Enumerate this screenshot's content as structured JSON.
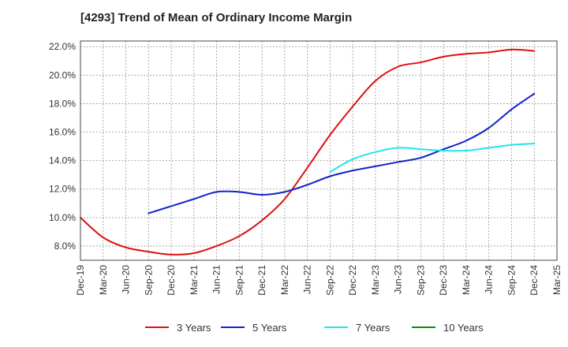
{
  "chart_data": {
    "type": "line",
    "title": "[4293]  Trend of Mean of Ordinary Income Margin",
    "xlabel": "",
    "ylabel": "",
    "x": [
      "Dec-19",
      "Mar-20",
      "Jun-20",
      "Sep-20",
      "Dec-20",
      "Mar-21",
      "Jun-21",
      "Sep-21",
      "Dec-21",
      "Mar-22",
      "Jun-22",
      "Sep-22",
      "Dec-22",
      "Mar-23",
      "Jun-23",
      "Sep-23",
      "Dec-23",
      "Mar-24",
      "Jun-24",
      "Sep-24",
      "Dec-24",
      "Mar-25"
    ],
    "ylim": [
      7.0,
      22.4
    ],
    "yticks": [
      8.0,
      10.0,
      12.0,
      14.0,
      16.0,
      18.0,
      20.0,
      22.0
    ],
    "ytick_labels": [
      "8.0%",
      "10.0%",
      "12.0%",
      "14.0%",
      "16.0%",
      "18.0%",
      "20.0%",
      "22.0%"
    ],
    "grid": true,
    "legend_position": "bottom",
    "series": [
      {
        "name": "3 Years",
        "color": "#dd1111",
        "values": [
          10.0,
          8.6,
          7.9,
          7.6,
          7.4,
          7.5,
          8.0,
          8.7,
          9.8,
          11.3,
          13.5,
          15.8,
          17.8,
          19.6,
          20.6,
          20.9,
          21.3,
          21.5,
          21.6,
          21.8,
          21.7,
          null
        ]
      },
      {
        "name": "5 Years",
        "color": "#1122cc",
        "values": [
          null,
          null,
          null,
          10.3,
          10.8,
          11.3,
          11.8,
          11.8,
          11.6,
          11.8,
          12.3,
          12.9,
          13.3,
          13.6,
          13.9,
          14.2,
          14.8,
          15.4,
          16.3,
          17.6,
          18.7,
          null
        ]
      },
      {
        "name": "7 Years",
        "color": "#22e5ee",
        "values": [
          null,
          null,
          null,
          null,
          null,
          null,
          null,
          null,
          null,
          null,
          null,
          13.2,
          14.1,
          14.6,
          14.9,
          14.8,
          14.7,
          14.7,
          14.9,
          15.1,
          15.2,
          null
        ]
      },
      {
        "name": "10 Years",
        "color": "#118811",
        "values": [
          null,
          null,
          null,
          null,
          null,
          null,
          null,
          null,
          null,
          null,
          null,
          null,
          null,
          null,
          null,
          null,
          null,
          null,
          null,
          null,
          null,
          null
        ]
      }
    ]
  }
}
